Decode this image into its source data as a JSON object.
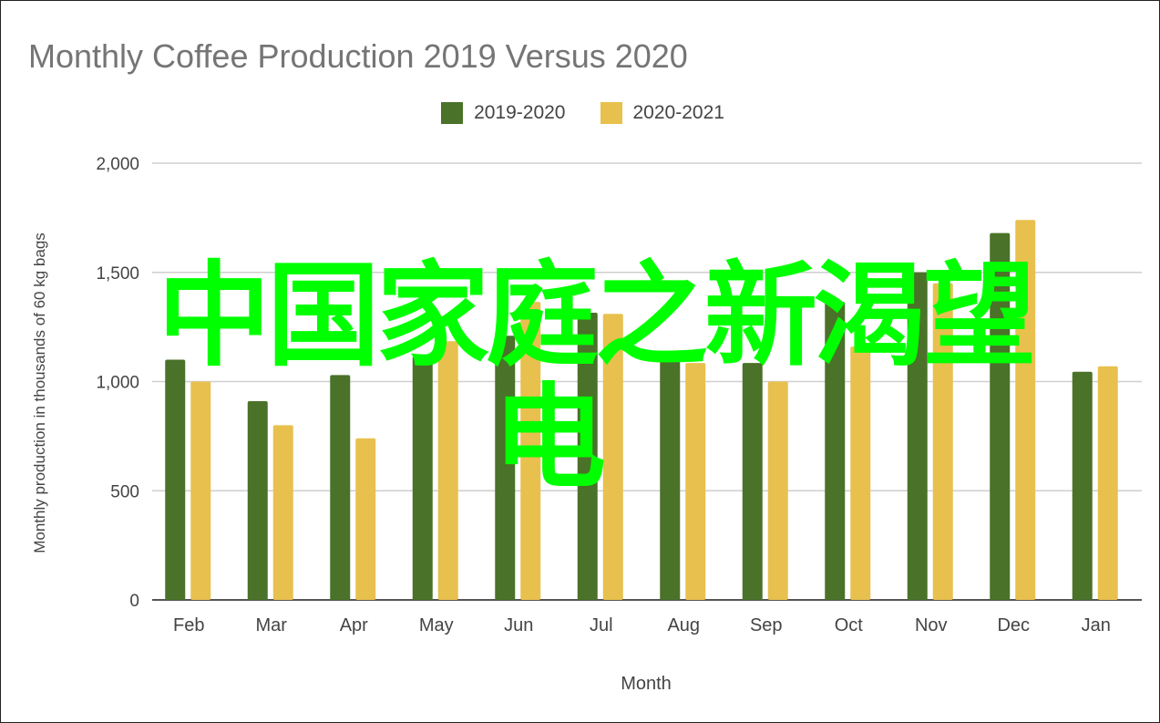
{
  "chart_data": {
    "type": "bar",
    "title": "Monthly Coffee Production 2019 Versus 2020",
    "xlabel": "Month",
    "ylabel": "Monthly production in thousands of 60 kg bags",
    "ylim": [
      0,
      2000
    ],
    "yticks": [
      "0",
      "500",
      "1,000",
      "1,500",
      "2,000"
    ],
    "ytick_values": [
      0,
      500,
      1000,
      1500,
      2000
    ],
    "grid": true,
    "legend_position": "top",
    "categories": [
      "Feb",
      "Mar",
      "Apr",
      "May",
      "Jun",
      "Jul",
      "Aug",
      "Sep",
      "Oct",
      "Nov",
      "Dec",
      "Jan"
    ],
    "series": [
      {
        "name": "2019-2020",
        "color": "#4a7229",
        "values": [
          1100,
          910,
          1030,
          1115,
          1210,
          1315,
          1100,
          1085,
          1365,
          1500,
          1680,
          1045
        ]
      },
      {
        "name": "2020-2021",
        "color": "#e8c04e",
        "values": [
          1000,
          800,
          740,
          1185,
          1365,
          1310,
          1085,
          1000,
          1160,
          1450,
          1740,
          1070
        ]
      }
    ]
  },
  "overlay": {
    "line1": "中国家庭之新渴望",
    "line2": "电",
    "color": "#00ff00"
  }
}
